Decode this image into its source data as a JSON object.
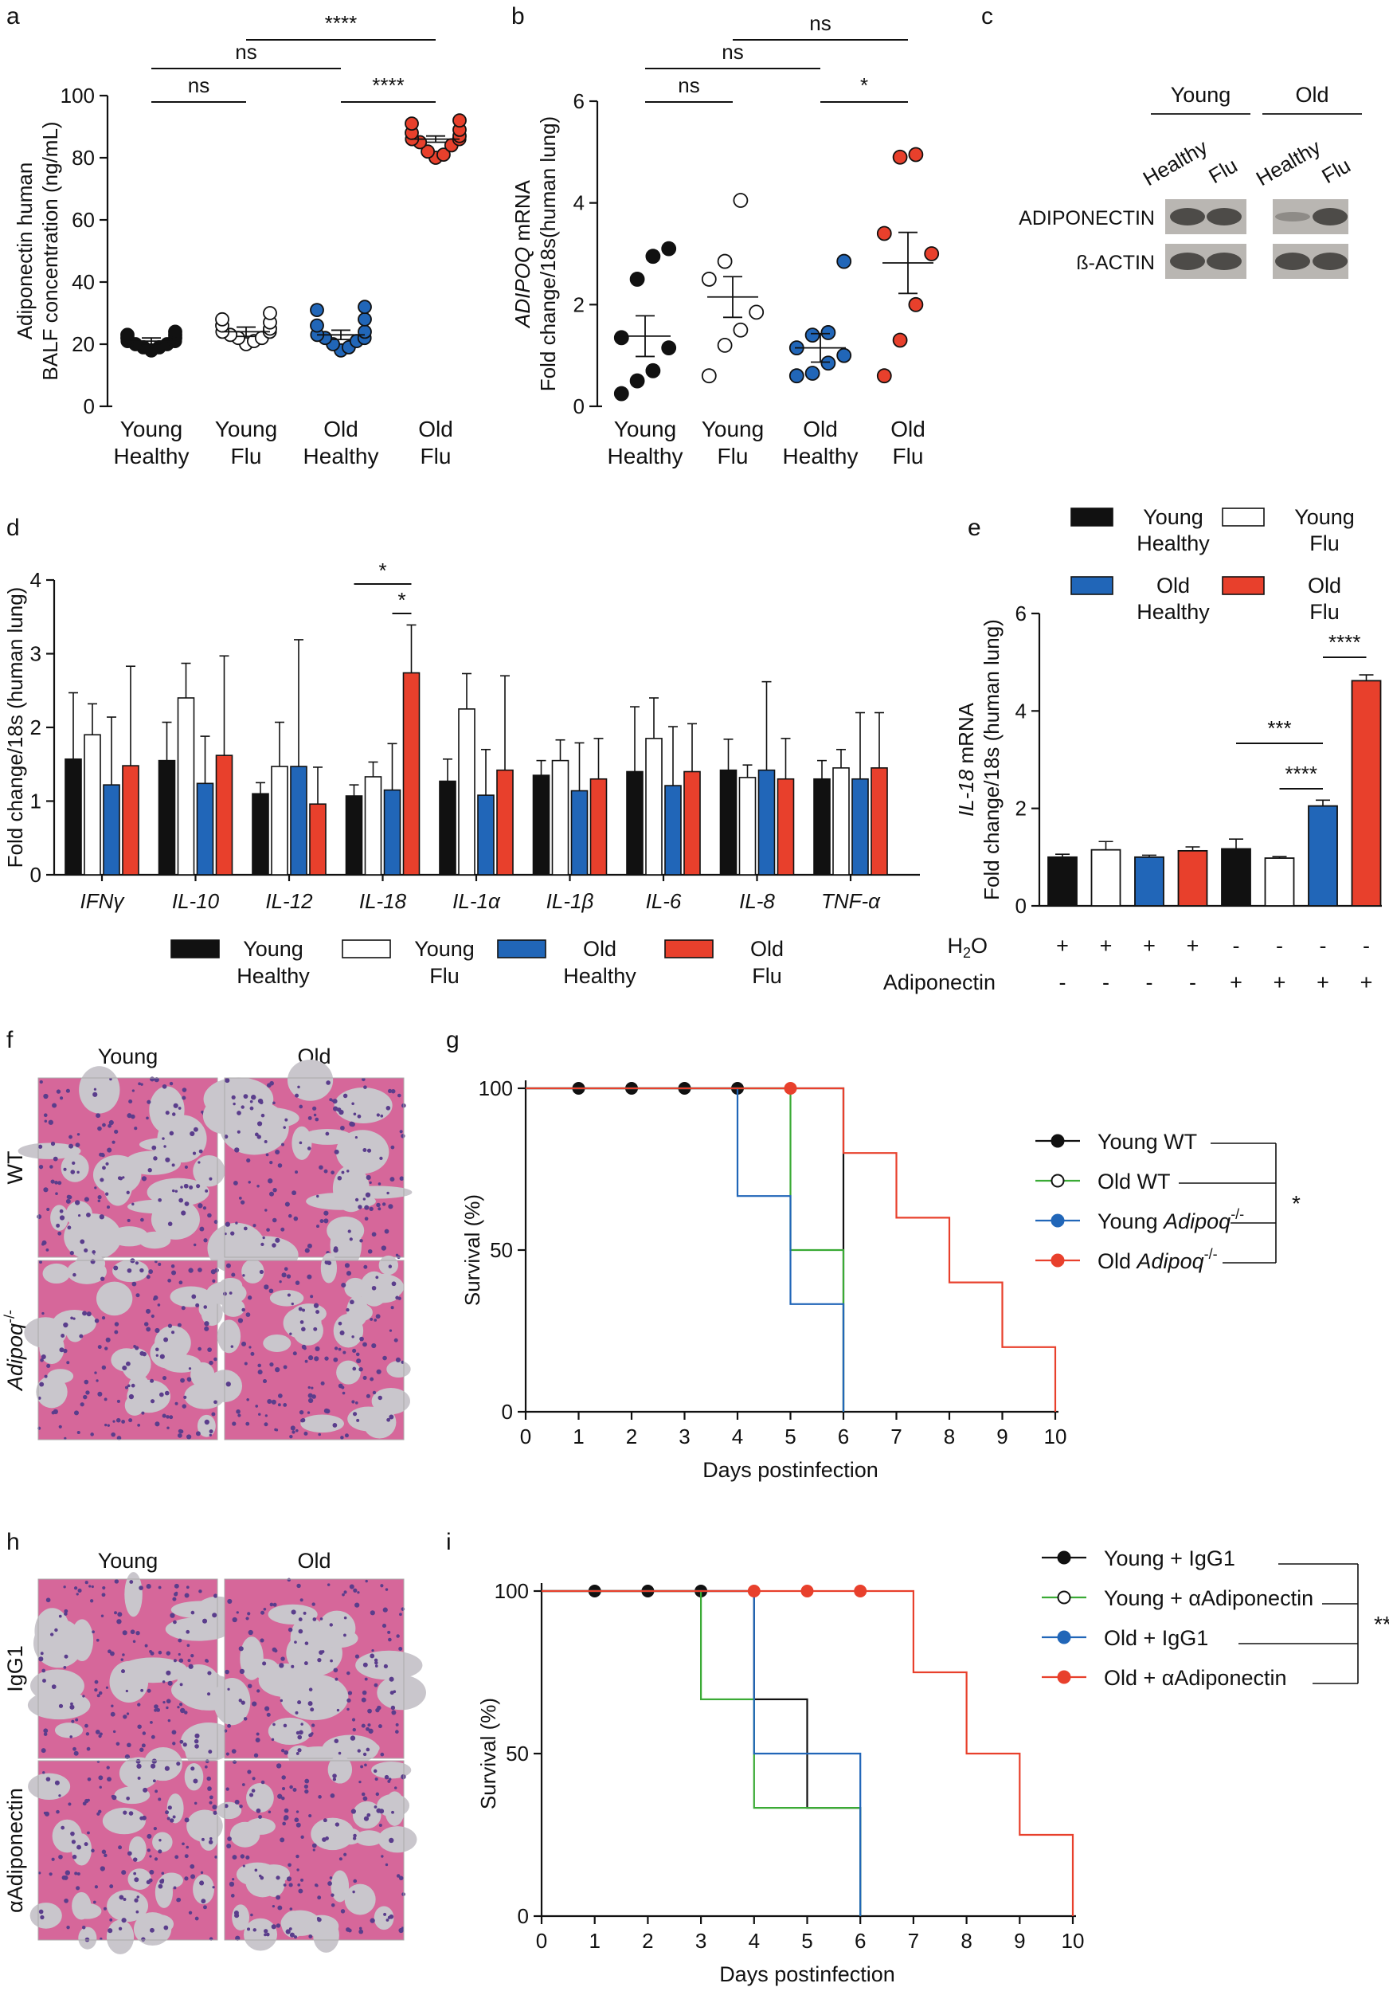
{
  "colors": {
    "black": "#111111",
    "white": "#ffffff",
    "blue": "#2166b8",
    "red": "#e8402c",
    "green": "#3aaa35",
    "grey": "#8a8a8a",
    "tissue_bg": "#c9c6cc",
    "tissue_pink": "#d6679a",
    "tissue_purple": "#5a3d8c"
  },
  "panel_letters": {
    "a": "a",
    "b": "b",
    "c": "c",
    "d": "d",
    "e": "e",
    "f": "f",
    "g": "g",
    "h": "h",
    "i": "i"
  },
  "chart_data": [
    {
      "panel": "a",
      "type": "scatter",
      "title": "",
      "ylabel_lines": [
        "Adiponectin human",
        "BALF concentration (ng/mL)"
      ],
      "ylim": [
        0,
        100
      ],
      "yticks": [
        "0",
        "20",
        "40",
        "60",
        "80",
        "100"
      ],
      "groups": [
        {
          "label_lines": [
            "Young",
            "Healthy"
          ],
          "style": "filled-black",
          "mean": 21,
          "sem": 1,
          "points": [
            18,
            19,
            19,
            20,
            20,
            21,
            21,
            22,
            22,
            23,
            23,
            24
          ]
        },
        {
          "label_lines": [
            "Young",
            "Flu"
          ],
          "style": "open",
          "mean": 24,
          "sem": 1.5,
          "points": [
            20,
            21,
            22,
            22,
            23,
            24,
            24,
            25,
            26,
            27,
            28,
            30
          ]
        },
        {
          "label_lines": [
            "Old",
            "Healthy"
          ],
          "style": "filled-blue",
          "mean": 23,
          "sem": 1.5,
          "points": [
            18,
            19,
            20,
            21,
            22,
            22,
            23,
            24,
            26,
            28,
            31,
            32
          ]
        },
        {
          "label_lines": [
            "Old",
            "Flu"
          ],
          "style": "filled-red",
          "mean": 86,
          "sem": 1,
          "points": [
            80,
            81,
            82,
            84,
            85,
            86,
            86,
            87,
            88,
            89,
            91,
            92
          ]
        }
      ],
      "significance": [
        {
          "from": 0,
          "to": 1,
          "text": "ns",
          "level": 1
        },
        {
          "from": 2,
          "to": 3,
          "text": "****",
          "level": 1
        },
        {
          "from": 0,
          "to": 2,
          "text": "ns",
          "level": 2
        },
        {
          "from": 1,
          "to": 3,
          "text": "****",
          "level": 3
        }
      ]
    },
    {
      "panel": "b",
      "type": "scatter",
      "ylabel_italic": "ADIPOQ",
      "ylabel_rest": " mRNA",
      "ylabel_line2": "Fold change/18s(human lung)",
      "ylim": [
        0,
        6
      ],
      "yticks": [
        "0",
        "2",
        "4",
        "6"
      ],
      "groups": [
        {
          "label_lines": [
            "Young",
            "Healthy"
          ],
          "style": "filled-black",
          "mean": 1.38,
          "sem": 0.4,
          "points": [
            0.25,
            0.5,
            0.7,
            1.15,
            1.35,
            2.5,
            2.95,
            3.1
          ]
        },
        {
          "label_lines": [
            "Young",
            "Flu"
          ],
          "style": "open",
          "mean": 2.15,
          "sem": 0.4,
          "points": [
            0.6,
            1.2,
            1.5,
            1.85,
            2.5,
            2.85,
            4.05
          ]
        },
        {
          "label_lines": [
            "Old",
            "Healthy"
          ],
          "style": "filled-blue",
          "mean": 1.15,
          "sem": 0.28,
          "points": [
            0.6,
            0.65,
            0.85,
            1.0,
            1.15,
            1.4,
            1.45,
            2.85
          ]
        },
        {
          "label_lines": [
            "Old",
            "Flu"
          ],
          "style": "filled-red",
          "mean": 2.82,
          "sem": 0.6,
          "points": [
            0.6,
            1.3,
            2.0,
            3.0,
            3.4,
            4.9,
            4.95
          ]
        }
      ],
      "significance": [
        {
          "from": 0,
          "to": 1,
          "text": "ns",
          "level": 1
        },
        {
          "from": 2,
          "to": 3,
          "text": "*",
          "level": 1
        },
        {
          "from": 0,
          "to": 2,
          "text": "ns",
          "level": 2
        },
        {
          "from": 1,
          "to": 3,
          "text": "ns",
          "level": 3
        }
      ]
    },
    {
      "panel": "c",
      "type": "blot",
      "groups": [
        "Young",
        "Old"
      ],
      "lanes": [
        "Healthy",
        "Flu",
        "Healthy",
        "Flu"
      ],
      "rows": [
        "ADIPONECTIN",
        "ß-ACTIN"
      ]
    },
    {
      "panel": "d",
      "type": "bar",
      "ylabel": "Fold change/18s (human lung)",
      "ylim": [
        0,
        4
      ],
      "yticks": [
        "0",
        "1",
        "2",
        "3",
        "4"
      ],
      "categories": [
        "IFNγ",
        "IL-10",
        "IL-12",
        "IL-18",
        "IL-1α",
        "IL-1β",
        "IL-6",
        "IL-8",
        "TNF-α"
      ],
      "series": [
        {
          "name": "Young Healthy",
          "label_lines": [
            "Young",
            "Healthy"
          ],
          "fill": "black",
          "values": [
            1.57,
            1.55,
            1.1,
            1.07,
            1.27,
            1.35,
            1.4,
            1.42,
            1.3
          ],
          "errors": [
            0.9,
            0.52,
            0.15,
            0.15,
            0.3,
            0.2,
            0.88,
            0.42,
            0.25
          ]
        },
        {
          "name": "Young Flu",
          "label_lines": [
            "Young",
            "Flu"
          ],
          "fill": "white",
          "values": [
            1.9,
            2.4,
            1.47,
            1.33,
            2.25,
            1.55,
            1.85,
            1.32,
            1.45
          ],
          "errors": [
            0.42,
            0.47,
            0.6,
            0.2,
            0.48,
            0.28,
            0.55,
            0.17,
            0.25
          ]
        },
        {
          "name": "Old Healthy",
          "label_lines": [
            "Old",
            "Healthy"
          ],
          "fill": "blue",
          "values": [
            1.22,
            1.24,
            1.47,
            1.15,
            1.08,
            1.14,
            1.21,
            1.42,
            1.3
          ],
          "errors": [
            0.92,
            0.64,
            1.72,
            0.63,
            0.62,
            0.65,
            0.8,
            1.2,
            0.9
          ]
        },
        {
          "name": "Old Flu",
          "label_lines": [
            "Old",
            "Flu"
          ],
          "fill": "red",
          "values": [
            1.48,
            1.62,
            0.96,
            2.74,
            1.42,
            1.3,
            1.4,
            1.3,
            1.45
          ],
          "errors": [
            1.35,
            1.35,
            0.5,
            0.65,
            1.28,
            0.55,
            0.65,
            0.55,
            0.75
          ]
        }
      ],
      "significance": [
        {
          "category": 3,
          "from": 0,
          "to": 3,
          "text": "*",
          "level": 2
        },
        {
          "category": 3,
          "from": 2,
          "to": 3,
          "text": "*",
          "level": 1
        }
      ]
    },
    {
      "panel": "e",
      "type": "bar",
      "ylabel_italic": "IL-18",
      "ylabel_rest": " mRNA",
      "ylabel_line2": "Fold change/18s (human lung)",
      "ylim": [
        0,
        6
      ],
      "yticks": [
        "0",
        "2",
        "4",
        "6"
      ],
      "bars": [
        {
          "fill": "black",
          "value": 1.0,
          "error": 0.06
        },
        {
          "fill": "white",
          "value": 1.15,
          "error": 0.17
        },
        {
          "fill": "blue",
          "value": 1.0,
          "error": 0.04
        },
        {
          "fill": "red",
          "value": 1.13,
          "error": 0.08
        },
        {
          "fill": "black",
          "value": 1.17,
          "error": 0.2
        },
        {
          "fill": "white",
          "value": 0.98,
          "error": 0.03
        },
        {
          "fill": "blue",
          "value": 2.05,
          "error": 0.12
        },
        {
          "fill": "red",
          "value": 4.62,
          "error": 0.12
        }
      ],
      "legend": [
        {
          "label_lines": [
            "Young",
            "Healthy"
          ],
          "fill": "black"
        },
        {
          "label_lines": [
            "Young",
            "Flu"
          ],
          "fill": "white"
        },
        {
          "label_lines": [
            "Old",
            "Healthy"
          ],
          "fill": "blue"
        },
        {
          "label_lines": [
            "Old",
            "Flu"
          ],
          "fill": "red"
        }
      ],
      "treatment_rows": [
        {
          "label_main": "H",
          "label_sub": "2",
          "label_end": "O",
          "signs": [
            "+",
            "+",
            "+",
            "+",
            "-",
            "-",
            "-",
            "-"
          ]
        },
        {
          "label_main": "Adiponectin",
          "label_sub": "",
          "label_end": "",
          "signs": [
            "-",
            "-",
            "-",
            "-",
            "+",
            "+",
            "+",
            "+"
          ]
        }
      ],
      "significance": [
        {
          "from": 6,
          "to": 7,
          "text": "****",
          "level": 1
        },
        {
          "from": 5,
          "to": 6,
          "text": "****",
          "level": 1
        },
        {
          "from": 4,
          "to": 6,
          "text": "***",
          "level": 2
        }
      ]
    },
    {
      "panel": "f",
      "type": "histology",
      "columns": [
        "Young",
        "Old"
      ],
      "rows": [
        "WT",
        "Adipoq"
      ],
      "row_suffix": [
        "",
        "-/-"
      ]
    },
    {
      "panel": "g",
      "type": "line",
      "subtype": "survival",
      "xlabel": "Days postinfection",
      "ylabel": "Survival (%)",
      "xlim": [
        0,
        10
      ],
      "ylim": [
        0,
        100
      ],
      "xticks": [
        "0",
        "1",
        "2",
        "3",
        "4",
        "5",
        "6",
        "7",
        "8",
        "9",
        "10"
      ],
      "yticks": [
        "0",
        "50",
        "100"
      ],
      "series": [
        {
          "name": "Young WT",
          "name_italic": "",
          "name_sup": "",
          "line_color": "black",
          "marker": "filled-black",
          "steps": [
            [
              0,
              100
            ],
            [
              6,
              100
            ],
            [
              6,
              0
            ]
          ],
          "markers": [
            [
              1,
              100
            ],
            [
              2,
              100
            ],
            [
              3,
              100
            ],
            [
              4,
              100
            ]
          ]
        },
        {
          "name": "Old WT",
          "name_italic": "",
          "name_sup": "",
          "line_color": "green",
          "marker": "open",
          "steps": [
            [
              0,
              100
            ],
            [
              5,
              100
            ],
            [
              5,
              50
            ],
            [
              6,
              50
            ],
            [
              6,
              0
            ]
          ],
          "markers": []
        },
        {
          "name": "Young ",
          "name_italic": "Adipoq",
          "name_sup": "-/-",
          "line_color": "blue",
          "marker": "filled-blue",
          "steps": [
            [
              0,
              100
            ],
            [
              4,
              100
            ],
            [
              4,
              66.7
            ],
            [
              5,
              66.7
            ],
            [
              5,
              33.3
            ],
            [
              6,
              33.3
            ],
            [
              6,
              0
            ]
          ],
          "markers": []
        },
        {
          "name": "Old ",
          "name_italic": "Adipoq",
          "name_sup": "-/-",
          "line_color": "red",
          "marker": "filled-red",
          "steps": [
            [
              0,
              100
            ],
            [
              6,
              100
            ],
            [
              6,
              80
            ],
            [
              7,
              80
            ],
            [
              7,
              60
            ],
            [
              8,
              60
            ],
            [
              8,
              40
            ],
            [
              9,
              40
            ],
            [
              9,
              20
            ],
            [
              10,
              20
            ],
            [
              10,
              0
            ]
          ],
          "markers": [
            [
              5,
              100
            ]
          ]
        }
      ],
      "significance": "*"
    },
    {
      "panel": "h",
      "type": "histology",
      "columns": [
        "Young",
        "Old"
      ],
      "rows": [
        "IgG1",
        "αAdiponectin"
      ],
      "row_suffix": [
        "",
        ""
      ]
    },
    {
      "panel": "i",
      "type": "line",
      "subtype": "survival",
      "xlabel": "Days postinfection",
      "ylabel": "Survival (%)",
      "xlim": [
        0,
        10
      ],
      "ylim": [
        0,
        100
      ],
      "xticks": [
        "0",
        "1",
        "2",
        "3",
        "4",
        "5",
        "6",
        "7",
        "8",
        "9",
        "10"
      ],
      "yticks": [
        "0",
        "50",
        "100"
      ],
      "series": [
        {
          "name": "Young + IgG1",
          "name_italic": "",
          "name_sup": "",
          "line_color": "black",
          "marker": "filled-black",
          "steps": [
            [
              0,
              100
            ],
            [
              4,
              100
            ],
            [
              4,
              66.7
            ],
            [
              5,
              66.7
            ],
            [
              5,
              33.3
            ],
            [
              6,
              33.3
            ],
            [
              6,
              0
            ]
          ],
          "markers": [
            [
              1,
              100
            ],
            [
              2,
              100
            ],
            [
              3,
              100
            ]
          ]
        },
        {
          "name": "Young + αAdiponectin",
          "name_italic": "",
          "name_sup": "",
          "line_color": "green",
          "marker": "open",
          "steps": [
            [
              0,
              100
            ],
            [
              3,
              100
            ],
            [
              3,
              66.7
            ],
            [
              4,
              66.7
            ],
            [
              4,
              33.3
            ],
            [
              5,
              33.3
            ],
            [
              6,
              33.3
            ],
            [
              6,
              0
            ]
          ],
          "markers": []
        },
        {
          "name": "Old + IgG1",
          "name_italic": "",
          "name_sup": "",
          "line_color": "blue",
          "marker": "filled-blue",
          "steps": [
            [
              0,
              100
            ],
            [
              4,
              100
            ],
            [
              4,
              50
            ],
            [
              6,
              50
            ],
            [
              6,
              0
            ]
          ],
          "markers": []
        },
        {
          "name": "Old + αAdiponectin",
          "name_italic": "",
          "name_sup": "",
          "line_color": "red",
          "marker": "filled-red",
          "steps": [
            [
              0,
              100
            ],
            [
              7,
              100
            ],
            [
              7,
              75
            ],
            [
              8,
              75
            ],
            [
              8,
              50
            ],
            [
              9,
              50
            ],
            [
              9,
              25
            ],
            [
              10,
              25
            ],
            [
              10,
              0
            ]
          ],
          "markers": [
            [
              4,
              100
            ],
            [
              5,
              100
            ],
            [
              6,
              100
            ]
          ]
        }
      ],
      "significance": "**"
    }
  ]
}
